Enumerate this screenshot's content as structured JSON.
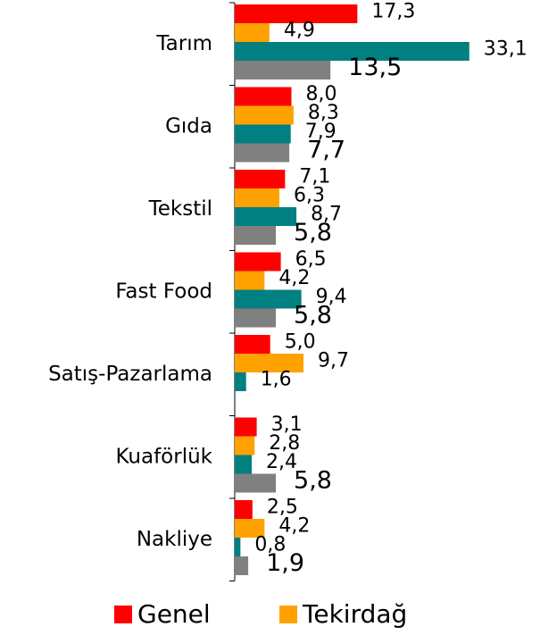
{
  "chart_data": {
    "type": "bar",
    "orientation": "horizontal",
    "categories": [
      "Tarım",
      "Gıda",
      "Tekstil",
      "Fast Food",
      "Satış-Pazarlama",
      "Kuaförlük",
      "Nakliye"
    ],
    "series": [
      {
        "name": "Genel",
        "color": "#ff0000",
        "values": [
          17.3,
          8.0,
          7.1,
          6.5,
          5.0,
          3.1,
          2.5
        ],
        "value_labels": [
          "17,3",
          "8,0",
          "7,1",
          "6,5",
          "5,0",
          "3,1",
          "2,5"
        ]
      },
      {
        "name": "Tekirdağ",
        "color": "#ffa200",
        "values": [
          4.9,
          8.3,
          6.3,
          4.2,
          9.7,
          2.8,
          4.2
        ],
        "value_labels": [
          "4,9",
          "8,3",
          "6,3",
          "4,2",
          "9,7",
          "2,8",
          "4,2"
        ]
      },
      {
        "color": "#008080",
        "values": [
          33.1,
          7.9,
          8.7,
          9.4,
          1.6,
          2.4,
          0.8
        ],
        "value_labels": [
          "33,1",
          "7,9",
          "8,7",
          "9,4",
          "1,6",
          "2,4",
          "0,8"
        ]
      },
      {
        "color": "#808080",
        "values": [
          13.5,
          7.7,
          5.8,
          5.8,
          null,
          5.8,
          1.9
        ],
        "value_labels": [
          "13,5",
          "7,7",
          "5,8",
          "5,8",
          null,
          "5,8",
          "1,9"
        ]
      }
    ],
    "xlim": [
      0,
      33
    ]
  }
}
